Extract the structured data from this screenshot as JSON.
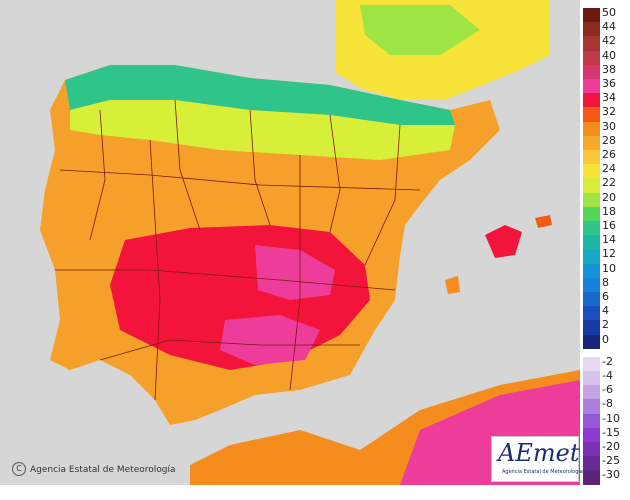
{
  "legend": {
    "items": [
      {
        "label": "50",
        "color": "#6b1c10"
      },
      {
        "label": "44",
        "color": "#8a2a1d"
      },
      {
        "label": "42",
        "color": "#a83535"
      },
      {
        "label": "40",
        "color": "#c03a4a"
      },
      {
        "label": "38",
        "color": "#d6366f"
      },
      {
        "label": "36",
        "color": "#ee3c9b"
      },
      {
        "label": "34",
        "color": "#f2143a"
      },
      {
        "label": "32",
        "color": "#f25a14"
      },
      {
        "label": "30",
        "color": "#f58c1e"
      },
      {
        "label": "28",
        "color": "#f8a92b"
      },
      {
        "label": "26",
        "color": "#fbc63a"
      },
      {
        "label": "24",
        "color": "#f8e438"
      },
      {
        "label": "22",
        "color": "#d8ef3a"
      },
      {
        "label": "20",
        "color": "#9ee444"
      },
      {
        "label": "18",
        "color": "#55d45a"
      },
      {
        "label": "16",
        "color": "#2ec48a"
      },
      {
        "label": "14",
        "color": "#1cb6a6"
      },
      {
        "label": "12",
        "color": "#16a8c4"
      },
      {
        "label": "10",
        "color": "#1495d6"
      },
      {
        "label": "8",
        "color": "#157fd9"
      },
      {
        "label": "6",
        "color": "#1868d0"
      },
      {
        "label": "4",
        "color": "#1a4fc0"
      },
      {
        "label": "2",
        "color": "#1b39a4"
      },
      {
        "label": "0",
        "color": "#1a237a"
      },
      {
        "label": "-2",
        "color": "#e6d9f1"
      },
      {
        "label": "-4",
        "color": "#d7c1ea"
      },
      {
        "label": "-6",
        "color": "#c3a4e4"
      },
      {
        "label": "-8",
        "color": "#aa80dd"
      },
      {
        "label": "-10",
        "color": "#9258d6"
      },
      {
        "label": "-15",
        "color": "#8a3ad0"
      },
      {
        "label": "-20",
        "color": "#7a2fb4"
      },
      {
        "label": "-25",
        "color": "#6a2a96"
      },
      {
        "label": "-30",
        "color": "#5a2478"
      }
    ]
  },
  "credit": "Agencia Estatal de Meteorología",
  "copyright_symbol": "C",
  "logo": {
    "name": "AEmet",
    "subtitle": "Agencia Estatal de Meteorología"
  },
  "colors": {
    "sea": "#d6d6d6",
    "land_base": "#f5a02a",
    "hot": "#f2143a",
    "very_hot": "#ee3c9b",
    "north_cool": "#2ec48a",
    "border": "#7a1a10"
  }
}
